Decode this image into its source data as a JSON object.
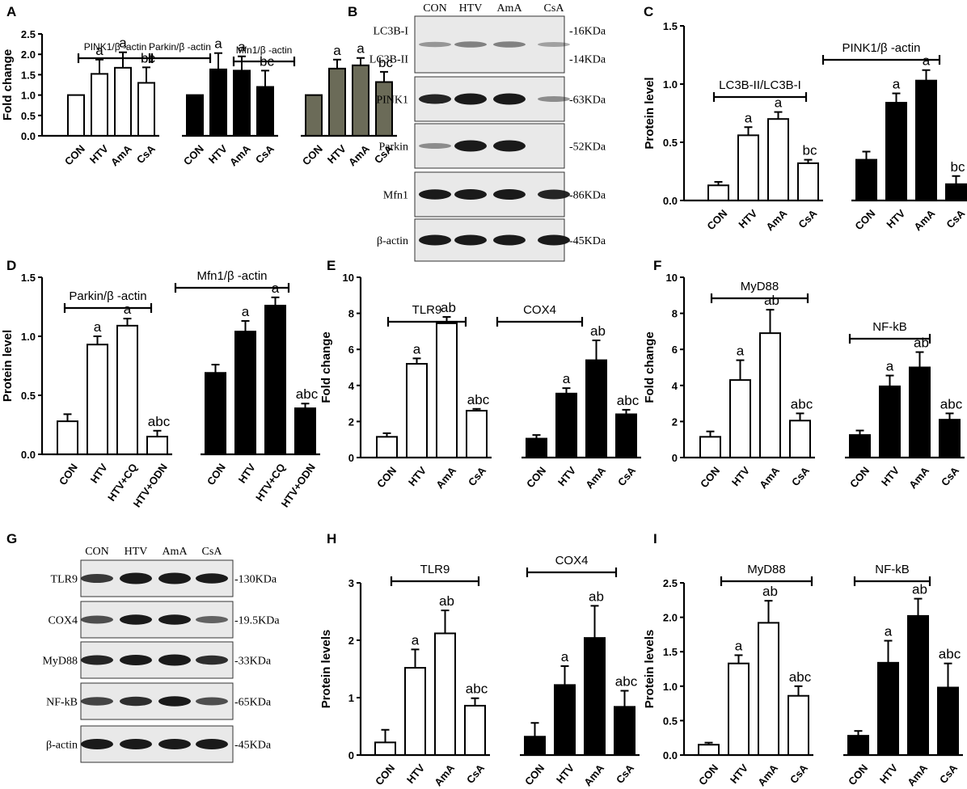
{
  "colors": {
    "white": "#ffffff",
    "black": "#000000",
    "olive": "#6b6b58",
    "band": "#1a1a1a",
    "blotbg": "#e9e9e9"
  },
  "blots": [
    {
      "panel": "B",
      "lanes": [
        "CON",
        "HTV",
        "AmA",
        "CsA"
      ],
      "rows": [
        {
          "labels": [
            "LC3B-I",
            "LC3B-II"
          ],
          "kda": [
            "-16KDa",
            "-14KDa"
          ],
          "intensity": [
            0.25,
            0.35,
            0.35,
            0.2
          ]
        },
        {
          "labels": [
            "PINK1"
          ],
          "kda": [
            "-63KDa"
          ],
          "intensity": [
            0.8,
            1.0,
            1.0,
            0.3
          ]
        },
        {
          "labels": [
            "Parkin"
          ],
          "kda": [
            "-52KDa"
          ],
          "intensity": [
            0.3,
            1.0,
            1.0,
            0.0
          ]
        },
        {
          "labels": [
            "Mfn1"
          ],
          "kda": [
            "-86KDa"
          ],
          "intensity": [
            0.85,
            0.9,
            0.9,
            0.8
          ]
        },
        {
          "labels": [
            "β-actin"
          ],
          "kda": [
            "-45KDa"
          ],
          "intensity": [
            0.9,
            0.9,
            0.9,
            0.9
          ]
        }
      ]
    },
    {
      "panel": "G",
      "lanes": [
        "CON",
        "HTV",
        "AmA",
        "CsA"
      ],
      "rows": [
        {
          "labels": [
            "TLR9"
          ],
          "kda": [
            "-130KDa"
          ],
          "intensity": [
            0.7,
            1.0,
            1.0,
            0.85
          ]
        },
        {
          "labels": [
            "COX4"
          ],
          "kda": [
            "-19.5KDa"
          ],
          "intensity": [
            0.6,
            0.85,
            0.85,
            0.5
          ]
        },
        {
          "labels": [
            "MyD88"
          ],
          "kda": [
            "-33KDa"
          ],
          "intensity": [
            0.8,
            0.9,
            1.0,
            0.75
          ]
        },
        {
          "labels": [
            "NF-kB"
          ],
          "kda": [
            "-65KDa"
          ],
          "intensity": [
            0.65,
            0.75,
            0.85,
            0.6
          ]
        },
        {
          "labels": [
            "β-actin"
          ],
          "kda": [
            "-45KDa"
          ],
          "intensity": [
            0.9,
            0.9,
            0.9,
            0.9
          ]
        }
      ]
    }
  ],
  "chart_data": [
    {
      "panel": "A",
      "type": "bar",
      "ylabel": "Fold change",
      "ylim": [
        0,
        2.5
      ],
      "yticks": [
        "0.0",
        "0.5",
        "1.0",
        "1.5",
        "2.0",
        "2.5"
      ],
      "categories": [
        "CON",
        "HTV",
        "AmA",
        "CsA"
      ],
      "series": [
        {
          "name": "PINK1/β -actin",
          "color": "#ffffff",
          "values": [
            1.0,
            1.52,
            1.67,
            1.3
          ],
          "errors": [
            0,
            0.35,
            0.38,
            0.38
          ],
          "labels": [
            "",
            "a",
            "a",
            "bc"
          ]
        },
        {
          "name": "Parkin/β -actin",
          "color": "#000000",
          "values": [
            1.0,
            1.63,
            1.6,
            1.2
          ],
          "errors": [
            0,
            0.4,
            0.35,
            0.4
          ],
          "labels": [
            "",
            "a",
            "a",
            "bc"
          ]
        },
        {
          "name": "Mfn1/β -actin",
          "color": "#6b6b58",
          "values": [
            1.0,
            1.65,
            1.73,
            1.32
          ],
          "errors": [
            0,
            0.22,
            0.18,
            0.25
          ],
          "labels": [
            "",
            "a",
            "a",
            "bc"
          ]
        }
      ]
    },
    {
      "panel": "C",
      "type": "bar",
      "ylabel": "Protein level",
      "ylim": [
        0,
        1.5
      ],
      "yticks": [
        "0.0",
        "0.5",
        "1.0",
        "1.5"
      ],
      "categories": [
        "CON",
        "HTV",
        "AmA",
        "CsA"
      ],
      "series": [
        {
          "name": "LC3B-II/LC3B-I",
          "color": "#ffffff",
          "values": [
            0.13,
            0.56,
            0.7,
            0.32
          ],
          "errors": [
            0.03,
            0.07,
            0.06,
            0.03
          ],
          "labels": [
            "",
            "a",
            "a",
            "bc"
          ]
        },
        {
          "name": "PINK1/β -actin",
          "color": "#000000",
          "values": [
            0.35,
            0.84,
            1.03,
            0.14
          ],
          "errors": [
            0.07,
            0.08,
            0.09,
            0.07
          ],
          "labels": [
            "",
            "a",
            "a",
            "bc"
          ]
        }
      ]
    },
    {
      "panel": "D",
      "type": "bar",
      "ylabel": "Protein level",
      "ylim": [
        0,
        1.5
      ],
      "yticks": [
        "0.0",
        "0.5",
        "1.0",
        "1.5"
      ],
      "categories": [
        "CON",
        "HTV",
        "HTV+CQ",
        "HTV+ODN"
      ],
      "series": [
        {
          "name": "Parkin/β -actin",
          "color": "#ffffff",
          "values": [
            0.28,
            0.93,
            1.09,
            0.15
          ],
          "errors": [
            0.06,
            0.07,
            0.06,
            0.05
          ],
          "labels": [
            "",
            "a",
            "a",
            "abc"
          ]
        },
        {
          "name": "Mfn1/β -actin",
          "color": "#000000",
          "values": [
            0.69,
            1.04,
            1.26,
            0.39
          ],
          "errors": [
            0.07,
            0.09,
            0.07,
            0.04
          ],
          "labels": [
            "",
            "a",
            "a",
            "abc"
          ]
        }
      ]
    },
    {
      "panel": "E",
      "type": "bar",
      "ylabel": "Fold change",
      "ylim": [
        0,
        10
      ],
      "yticks": [
        "0",
        "2",
        "4",
        "6",
        "8",
        "10"
      ],
      "categories": [
        "CON",
        "HTV",
        "AmA",
        "CsA"
      ],
      "series": [
        {
          "name": "TLR9",
          "color": "#ffffff",
          "values": [
            1.15,
            5.2,
            7.45,
            2.6
          ],
          "errors": [
            0.2,
            0.3,
            0.35,
            0.1
          ],
          "labels": [
            "",
            "a",
            "ab",
            "abc"
          ]
        },
        {
          "name": "COX4",
          "color": "#000000",
          "values": [
            1.05,
            3.55,
            5.4,
            2.4
          ],
          "errors": [
            0.2,
            0.3,
            1.1,
            0.25
          ],
          "labels": [
            "",
            "a",
            "ab",
            "abc"
          ]
        }
      ]
    },
    {
      "panel": "F",
      "type": "bar",
      "ylabel": "Fold change",
      "ylim": [
        0,
        10
      ],
      "yticks": [
        "0",
        "2",
        "4",
        "6",
        "8",
        "10"
      ],
      "categories": [
        "CON",
        "HTV",
        "AmA",
        "CsA"
      ],
      "series": [
        {
          "name": "MyD88",
          "color": "#ffffff",
          "values": [
            1.15,
            4.3,
            6.9,
            2.05
          ],
          "errors": [
            0.3,
            1.1,
            1.3,
            0.4
          ],
          "labels": [
            "",
            "a",
            "ab",
            "abc"
          ]
        },
        {
          "name": "NF-kB",
          "color": "#000000",
          "values": [
            1.25,
            3.95,
            5.0,
            2.1
          ],
          "errors": [
            0.25,
            0.6,
            0.85,
            0.35
          ],
          "labels": [
            "",
            "a",
            "ab",
            "abc"
          ]
        }
      ]
    },
    {
      "panel": "H",
      "type": "bar",
      "ylabel": "Protein levels",
      "ylim": [
        0,
        3
      ],
      "yticks": [
        "0",
        "1",
        "2",
        "3"
      ],
      "categories": [
        "CON",
        "HTV",
        "AmA",
        "CsA"
      ],
      "series": [
        {
          "name": "TLR9",
          "color": "#ffffff",
          "values": [
            0.22,
            1.52,
            2.12,
            0.86
          ],
          "errors": [
            0.22,
            0.32,
            0.4,
            0.13
          ],
          "labels": [
            "",
            "a",
            "ab",
            "abc"
          ]
        },
        {
          "name": "COX4",
          "color": "#000000",
          "values": [
            0.32,
            1.22,
            2.04,
            0.84
          ],
          "errors": [
            0.24,
            0.33,
            0.56,
            0.28
          ],
          "labels": [
            "",
            "a",
            "ab",
            "abc"
          ]
        }
      ]
    },
    {
      "panel": "I",
      "type": "bar",
      "ylabel": "Protein levels",
      "ylim": [
        0,
        2.5
      ],
      "yticks": [
        "0.0",
        "0.5",
        "1.0",
        "1.5",
        "2.0",
        "2.5"
      ],
      "categories": [
        "CON",
        "HTV",
        "AmA",
        "CsA"
      ],
      "series": [
        {
          "name": "MyD88",
          "color": "#ffffff",
          "values": [
            0.15,
            1.33,
            1.92,
            0.86
          ],
          "errors": [
            0.03,
            0.12,
            0.32,
            0.14
          ],
          "labels": [
            "",
            "a",
            "ab",
            "abc"
          ]
        },
        {
          "name": "NF-kB",
          "color": "#000000",
          "values": [
            0.28,
            1.34,
            2.02,
            0.98
          ],
          "errors": [
            0.07,
            0.32,
            0.25,
            0.35
          ],
          "labels": [
            "",
            "a",
            "ab",
            "abc"
          ]
        }
      ]
    }
  ]
}
